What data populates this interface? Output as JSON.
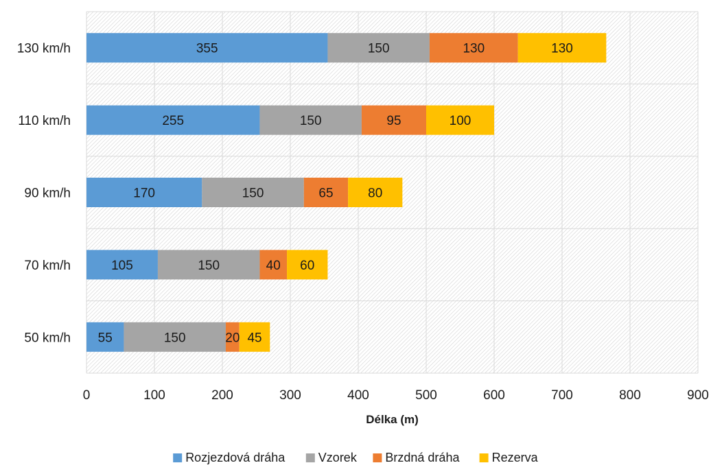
{
  "chart_data": {
    "type": "bar",
    "orientation": "horizontal",
    "stacked": true,
    "categories": [
      "130 km/h",
      "110 km/h",
      "90 km/h",
      "70 km/h",
      "50 km/h"
    ],
    "series": [
      {
        "name": "Rozjezdová dráha",
        "color": "#5b9bd5",
        "values": [
          355,
          255,
          170,
          105,
          55
        ]
      },
      {
        "name": "Vzorek",
        "color": "#a5a5a5",
        "values": [
          150,
          150,
          150,
          150,
          150
        ]
      },
      {
        "name": "Brzdná dráha",
        "color": "#ed7d31",
        "values": [
          130,
          95,
          65,
          40,
          20
        ]
      },
      {
        "name": "Rezerva",
        "color": "#ffc000",
        "values": [
          130,
          100,
          80,
          60,
          45
        ]
      }
    ],
    "xlabel": "Délka (m)",
    "ylabel": "",
    "xlim": [
      0,
      900
    ],
    "xticks": [
      0,
      100,
      200,
      300,
      400,
      500,
      600,
      700,
      800,
      900
    ],
    "grid": true,
    "plot_background": "diagonal-hatch",
    "legend_position": "bottom",
    "data_labels": true
  }
}
